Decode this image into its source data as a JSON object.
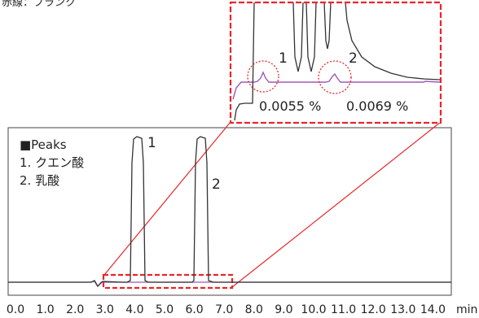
{
  "top_label": "赤線：ブランク",
  "legend": {
    "title": "■Peaks",
    "items": [
      "1. クエン酸",
      "2. 乳酸"
    ]
  },
  "inset": {
    "peak_labels": [
      "1",
      "2"
    ],
    "percent_labels": [
      "0.0055 %",
      "0.0069 %"
    ]
  },
  "colors": {
    "sample": "#333333",
    "blank": "#9b5bb5",
    "highlight": "#e8262a"
  },
  "chart_data": {
    "type": "line",
    "xlabel": "min",
    "x_ticks": [
      "0.0",
      "1.0",
      "2.0",
      "3.0",
      "4.0",
      "5.0",
      "6.0",
      "7.0",
      "8.0",
      "9.0",
      "10.0",
      "11.0",
      "12.0",
      "13.0",
      "14.0"
    ],
    "xlim": [
      0,
      14.5
    ],
    "peaks": [
      {
        "label": "1",
        "name": "クエン酸",
        "retention_time": 4.1
      },
      {
        "label": "2",
        "name": "乳酸",
        "retention_time": 6.3
      }
    ],
    "zoom_region": {
      "x_range": [
        3.0,
        7.4
      ]
    }
  }
}
